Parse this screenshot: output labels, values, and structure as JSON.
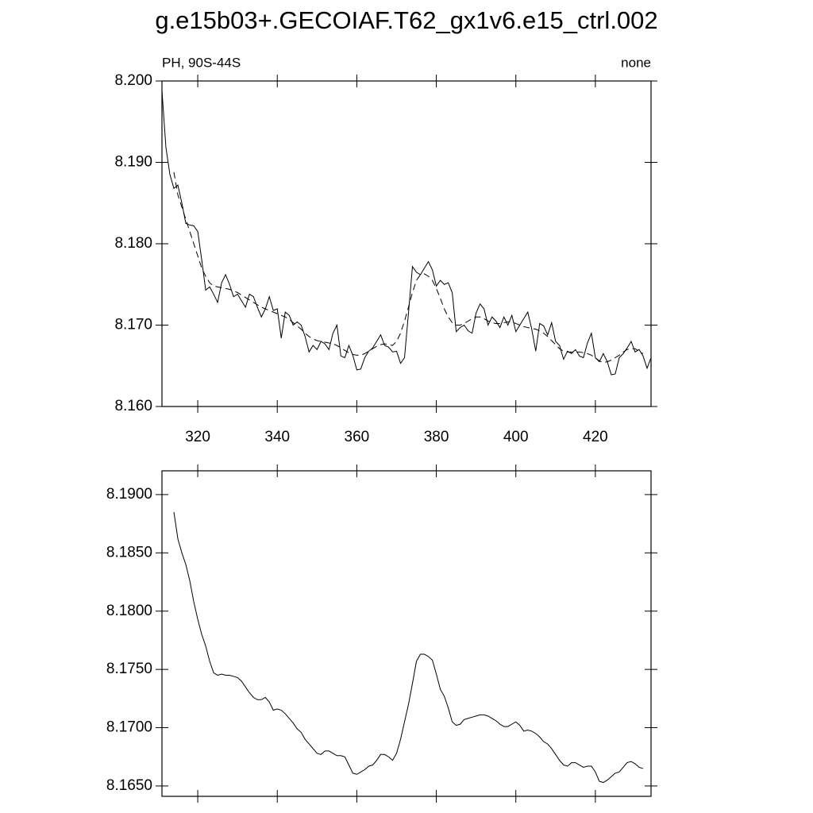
{
  "chart_data": [
    {
      "type": "line",
      "title": "g.e15b03+.GECOIAF.T62_gx1v6.e15_ctrl.002",
      "left_string": "PH, 90S-44S",
      "right_string": "none",
      "x": [
        311,
        312,
        313,
        314,
        315,
        316,
        317,
        318,
        319,
        320,
        321,
        322,
        323,
        324,
        325,
        326,
        327,
        328,
        329,
        330,
        331,
        332,
        333,
        334,
        335,
        336,
        337,
        338,
        339,
        340,
        341,
        342,
        343,
        344,
        345,
        346,
        347,
        348,
        349,
        350,
        351,
        352,
        353,
        354,
        355,
        356,
        357,
        358,
        359,
        360,
        361,
        362,
        363,
        364,
        365,
        366,
        367,
        368,
        369,
        370,
        371,
        372,
        373,
        374,
        375,
        376,
        377,
        378,
        379,
        380,
        381,
        382,
        383,
        384,
        385,
        386,
        387,
        388,
        389,
        390,
        391,
        392,
        393,
        394,
        395,
        396,
        397,
        398,
        399,
        400,
        401,
        402,
        403,
        404,
        405,
        406,
        407,
        408,
        409,
        410,
        411,
        412,
        413,
        414,
        415,
        416,
        417,
        418,
        419,
        420,
        421,
        422,
        423,
        424,
        425,
        426,
        427,
        428,
        429,
        430,
        431,
        432,
        433,
        434
      ],
      "series": [
        {
          "color": "#000000",
          "line_style": "solid",
          "values": [
            8.1988,
            8.1918,
            8.1885,
            8.1868,
            8.1872,
            8.185,
            8.1825,
            8.1823,
            8.1822,
            8.1815,
            8.178,
            8.1743,
            8.1747,
            8.1738,
            8.1728,
            8.1752,
            8.1762,
            8.175,
            8.1735,
            8.1738,
            8.173,
            8.1722,
            8.1738,
            8.1735,
            8.1722,
            8.171,
            8.172,
            8.1735,
            8.1718,
            8.172,
            8.1684,
            8.1716,
            8.1712,
            8.17,
            8.1704,
            8.17,
            8.1686,
            8.1667,
            8.1675,
            8.167,
            8.168,
            8.1677,
            8.167,
            8.169,
            8.17,
            8.1662,
            8.166,
            8.1675,
            8.1663,
            8.1645,
            8.1646,
            8.166,
            8.1668,
            8.1672,
            8.168,
            8.1688,
            8.1675,
            8.1673,
            8.1667,
            8.1668,
            8.1653,
            8.166,
            8.1715,
            8.1772,
            8.1765,
            8.1762,
            8.177,
            8.1778,
            8.1768,
            8.1748,
            8.1755,
            8.175,
            8.1752,
            8.174,
            8.1692,
            8.1697,
            8.17,
            8.1693,
            8.169,
            8.1715,
            8.1726,
            8.172,
            8.17,
            8.171,
            8.1705,
            8.1697,
            8.171,
            8.17,
            8.1712,
            8.1692,
            8.17,
            8.1708,
            8.1716,
            8.1695,
            8.1668,
            8.1702,
            8.1699,
            8.1688,
            8.1703,
            8.168,
            8.1675,
            8.1658,
            8.1668,
            8.1665,
            8.167,
            8.1662,
            8.166,
            8.1678,
            8.169,
            8.166,
            8.1655,
            8.1665,
            8.1655,
            8.1639,
            8.164,
            8.166,
            8.1665,
            8.1672,
            8.168,
            8.1667,
            8.167,
            8.1662,
            8.1647,
            8.166
          ]
        },
        {
          "color": "#000000",
          "line_style": "dashed",
          "values": [
            null,
            null,
            null,
            8.1888,
            8.186,
            8.1845,
            8.183,
            8.1815,
            8.18,
            8.1785,
            8.177,
            8.176,
            8.1752,
            8.1748,
            8.1747,
            8.1746,
            8.1745,
            8.1744,
            8.1742,
            8.174,
            8.1737,
            8.1734,
            8.1731,
            8.1728,
            8.1725,
            8.1722,
            8.172,
            8.1718,
            8.1716,
            8.1714,
            8.1712,
            8.171,
            8.1707,
            8.1703,
            8.1699,
            8.1695,
            8.169,
            8.1686,
            8.1683,
            8.1681,
            8.168,
            8.1679,
            8.1678,
            8.1677,
            8.1675,
            8.1672,
            8.1669,
            8.1666,
            8.1664,
            8.1663,
            8.1663,
            8.1665,
            8.1668,
            8.1671,
            8.1674,
            8.1676,
            8.1677,
            8.1676,
            8.1675,
            8.168,
            8.169,
            8.1705,
            8.1722,
            8.174,
            8.1755,
            8.1762,
            8.1763,
            8.176,
            8.1755,
            8.1745,
            8.1733,
            8.172,
            8.171,
            8.1703,
            8.17,
            8.17,
            8.1702,
            8.1705,
            8.1708,
            8.171,
            8.171,
            8.1708,
            8.1705,
            8.1703,
            8.1702,
            8.1702,
            8.1703,
            8.1704,
            8.1704,
            8.1702,
            8.17,
            8.1698,
            8.1697,
            8.1696,
            8.1695,
            8.1693,
            8.169,
            8.1686,
            8.1681,
            8.1676,
            8.1671,
            8.1668,
            8.1667,
            8.1667,
            8.1667,
            8.1667,
            8.1666,
            8.1665,
            8.1663,
            8.166,
            8.1656,
            8.1654,
            8.1655,
            8.1657,
            8.166,
            8.1663,
            8.1667,
            8.167,
            8.1671,
            8.1671,
            8.1668,
            8.1665,
            null,
            null
          ]
        }
      ],
      "xlim": [
        311,
        434
      ],
      "xticks": [
        320,
        340,
        360,
        380,
        400,
        420
      ],
      "ylim": [
        8.16,
        8.2
      ],
      "yticks": [
        {
          "value": 8.16,
          "label": "8.160"
        },
        {
          "value": 8.17,
          "label": "8.170"
        },
        {
          "value": 8.18,
          "label": "8.180"
        },
        {
          "value": 8.19,
          "label": "8.190"
        },
        {
          "value": 8.2,
          "label": "8.200"
        }
      ]
    },
    {
      "type": "line",
      "x": [
        314,
        315,
        316,
        317,
        318,
        319,
        320,
        321,
        322,
        323,
        324,
        325,
        326,
        327,
        328,
        329,
        330,
        331,
        332,
        333,
        334,
        335,
        336,
        337,
        338,
        339,
        340,
        341,
        342,
        343,
        344,
        345,
        346,
        347,
        348,
        349,
        350,
        351,
        352,
        353,
        354,
        355,
        356,
        357,
        358,
        359,
        360,
        361,
        362,
        363,
        364,
        365,
        366,
        367,
        368,
        369,
        370,
        371,
        372,
        373,
        374,
        375,
        376,
        377,
        378,
        379,
        380,
        381,
        382,
        383,
        384,
        385,
        386,
        387,
        388,
        389,
        390,
        391,
        392,
        393,
        394,
        395,
        396,
        397,
        398,
        399,
        400,
        401,
        402,
        403,
        404,
        405,
        406,
        407,
        408,
        409,
        410,
        411,
        412,
        413,
        414,
        415,
        416,
        417,
        418,
        419,
        420,
        421,
        422,
        423,
        424,
        425,
        426,
        427,
        428,
        429,
        430,
        431,
        432
      ],
      "series": [
        {
          "color": "#000000",
          "line_style": "solid",
          "values": [
            8.1885,
            8.1862,
            8.185,
            8.184,
            8.1826,
            8.1808,
            8.1793,
            8.178,
            8.177,
            8.1757,
            8.1747,
            8.1745,
            8.1746,
            8.1745,
            8.1745,
            8.1744,
            8.1743,
            8.174,
            8.1735,
            8.173,
            8.1726,
            8.1724,
            8.1724,
            8.1726,
            8.1722,
            8.1715,
            8.1716,
            8.1715,
            8.1712,
            8.1708,
            8.1704,
            8.1699,
            8.1696,
            8.169,
            8.1686,
            8.1682,
            8.1678,
            8.1677,
            8.168,
            8.168,
            8.1678,
            8.1676,
            8.1676,
            8.1675,
            8.1668,
            8.1661,
            8.166,
            8.1662,
            8.1664,
            8.1667,
            8.1668,
            8.1672,
            8.1677,
            8.1677,
            8.1675,
            8.1672,
            8.1678,
            8.169,
            8.1705,
            8.172,
            8.1738,
            8.1757,
            8.1763,
            8.1763,
            8.1761,
            8.1758,
            8.1746,
            8.1733,
            8.1727,
            8.1717,
            8.1705,
            8.1702,
            8.1703,
            8.1707,
            8.1708,
            8.1709,
            8.171,
            8.1711,
            8.1711,
            8.171,
            8.1708,
            8.1706,
            8.1703,
            8.1701,
            8.1701,
            8.1703,
            8.1705,
            8.1702,
            8.1697,
            8.1698,
            8.1697,
            8.1695,
            8.1692,
            8.1688,
            8.1686,
            8.1682,
            8.1677,
            8.1672,
            8.1668,
            8.1667,
            8.167,
            8.167,
            8.1668,
            8.1666,
            8.1667,
            8.1667,
            8.1662,
            8.1654,
            8.1653,
            8.1655,
            8.1658,
            8.1661,
            8.1662,
            8.1666,
            8.167,
            8.1671,
            8.1669,
            8.1666,
            8.1665
          ]
        }
      ],
      "xlim": [
        311,
        434
      ],
      "xticks": [
        320,
        340,
        360,
        380,
        400,
        420
      ],
      "xtick_labels": false,
      "ylim": [
        8.16411,
        8.19204
      ],
      "yticks": [
        {
          "value": 8.165,
          "label": "8.1650"
        },
        {
          "value": 8.17,
          "label": "8.1700"
        },
        {
          "value": 8.175,
          "label": "8.1750"
        },
        {
          "value": 8.18,
          "label": "8.1800"
        },
        {
          "value": 8.185,
          "label": "8.1850"
        },
        {
          "value": 8.19,
          "label": "8.1900"
        }
      ]
    }
  ]
}
